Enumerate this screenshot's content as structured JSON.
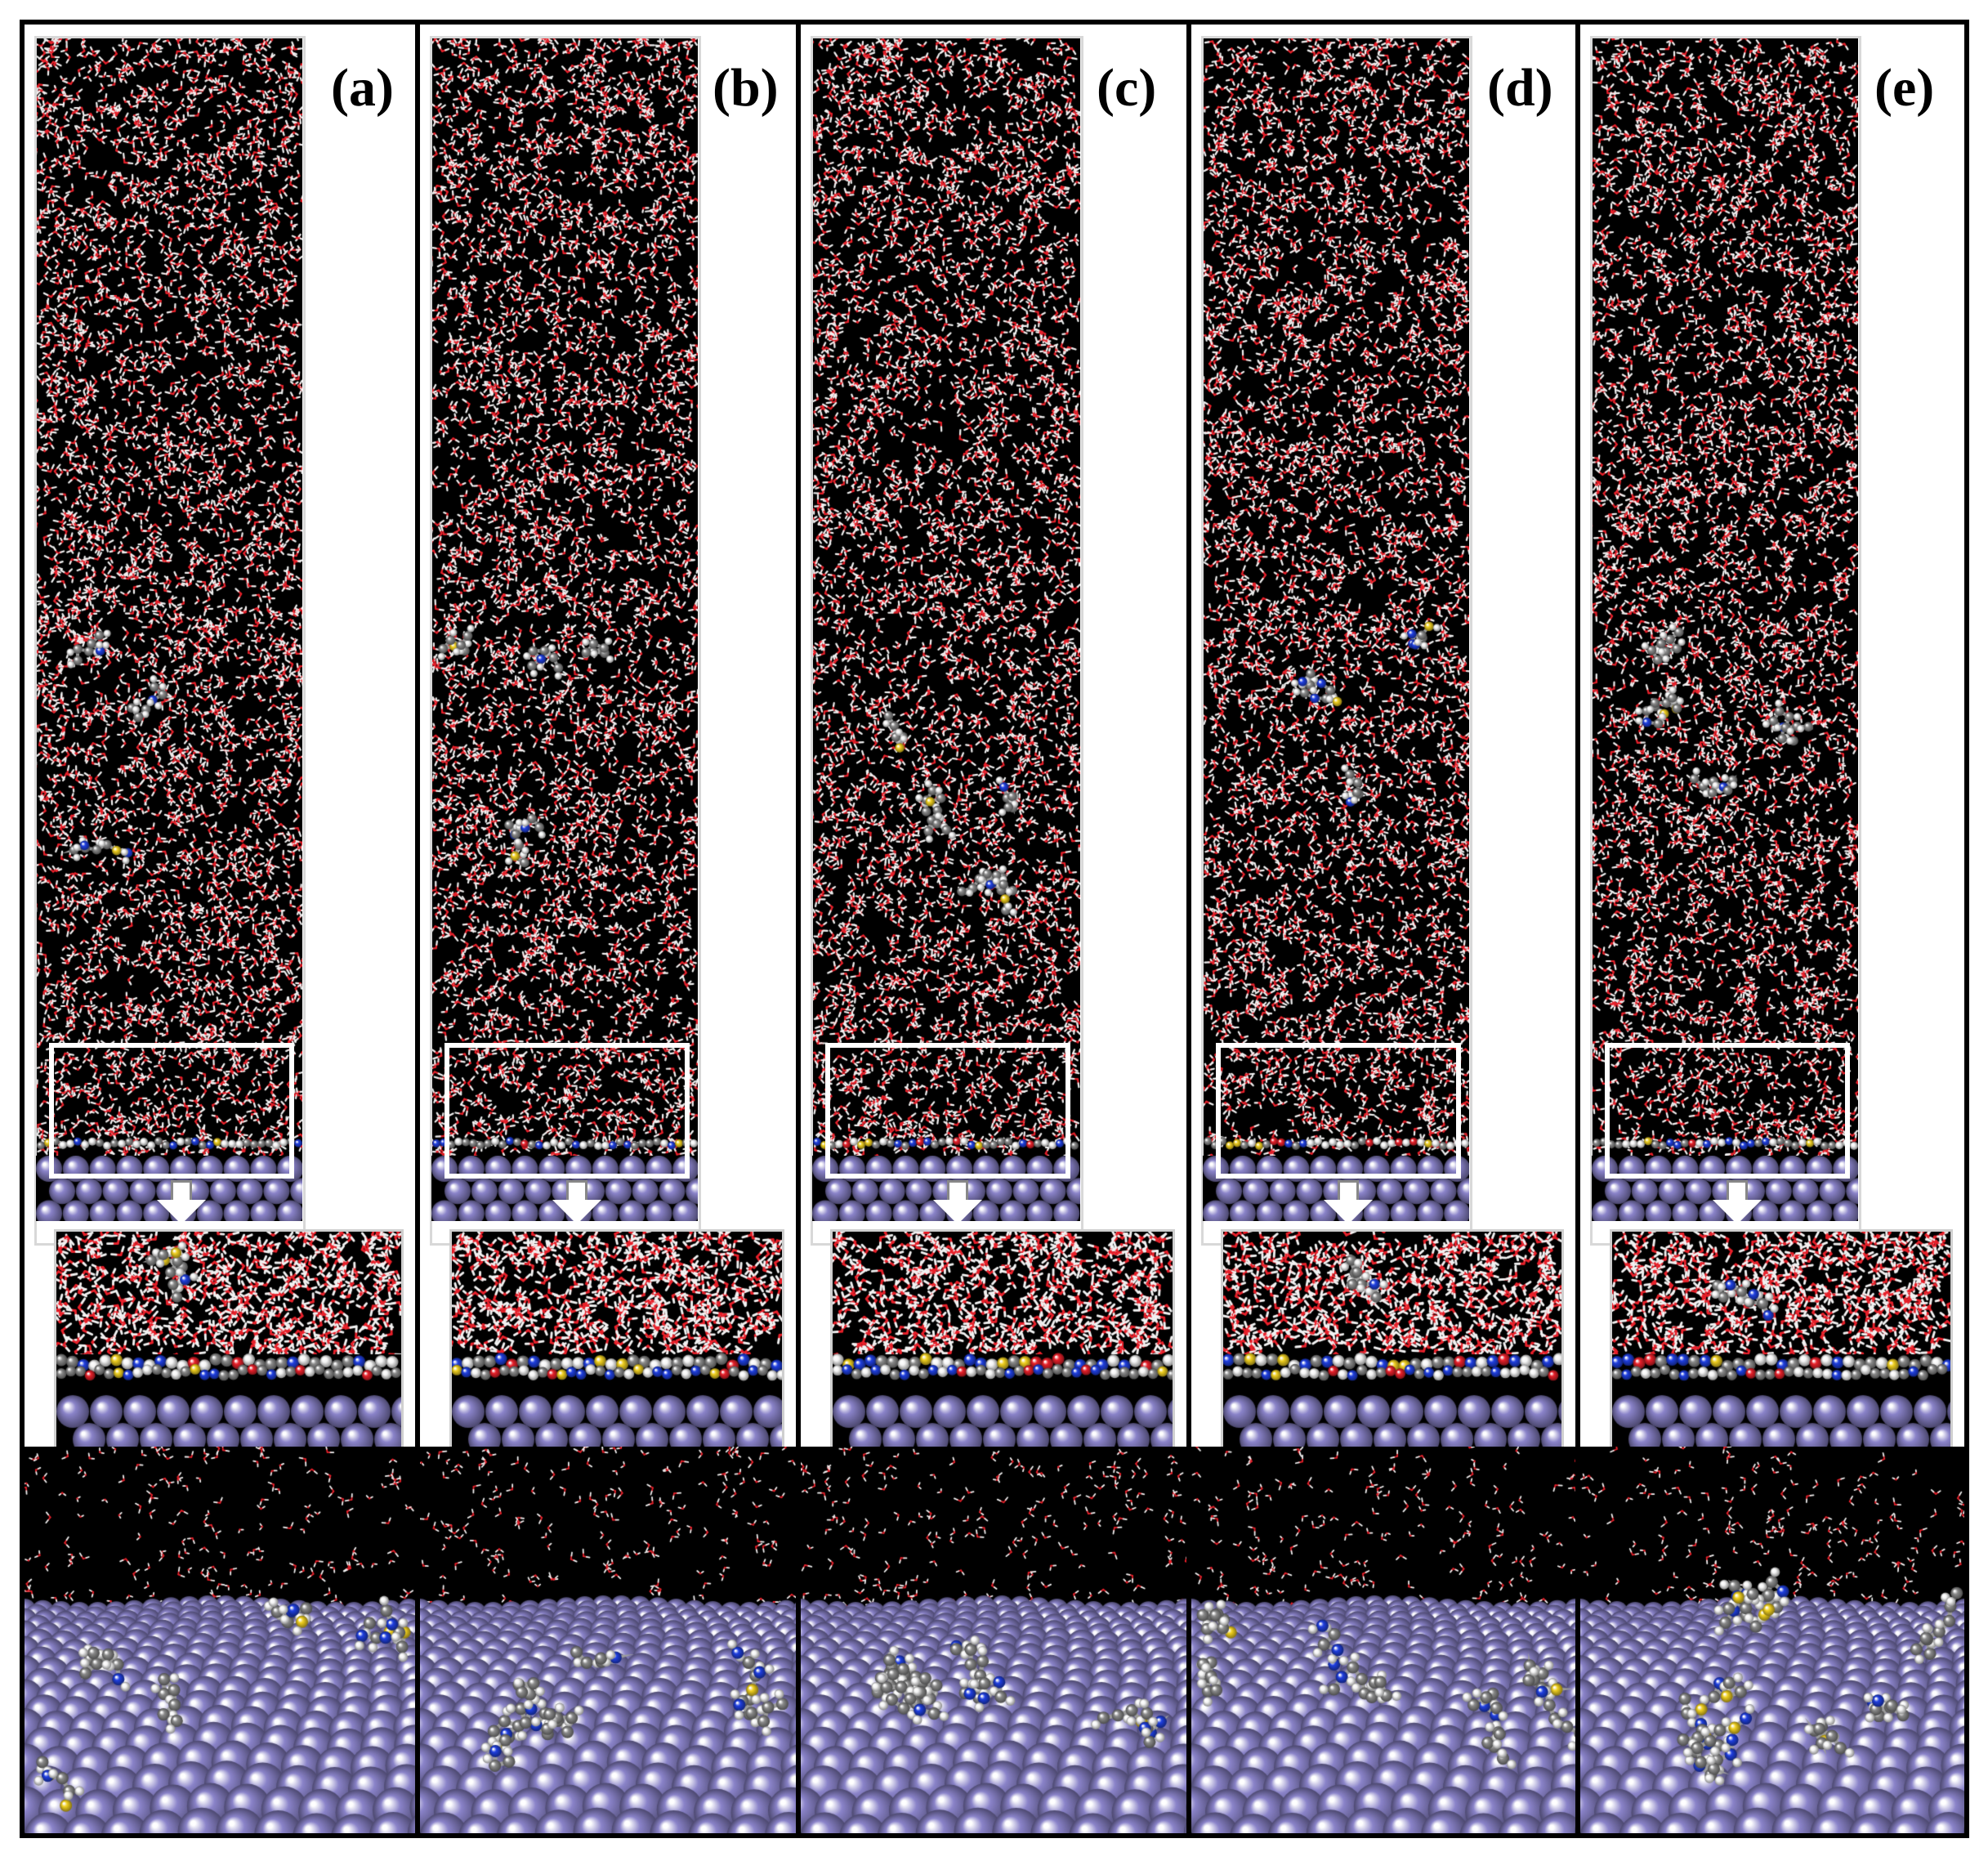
{
  "figure": {
    "panels": [
      {
        "label": "(a)"
      },
      {
        "label": "(b)"
      },
      {
        "label": "(c)"
      },
      {
        "label": "(d)"
      },
      {
        "label": "(e)"
      }
    ],
    "colors": {
      "background": "#000000",
      "water_oxygen": "#e8202a",
      "water_hydrogen": "#f2f2f2",
      "metal_atom": "#8a83c9",
      "inhibitor_carbon": "#8a8a8a",
      "inhibitor_hydrogen": "#f5f5f5",
      "nitrogen": "#1f3fe0",
      "sulfur": "#f0d020",
      "highlight_box": "#ffffff"
    }
  }
}
